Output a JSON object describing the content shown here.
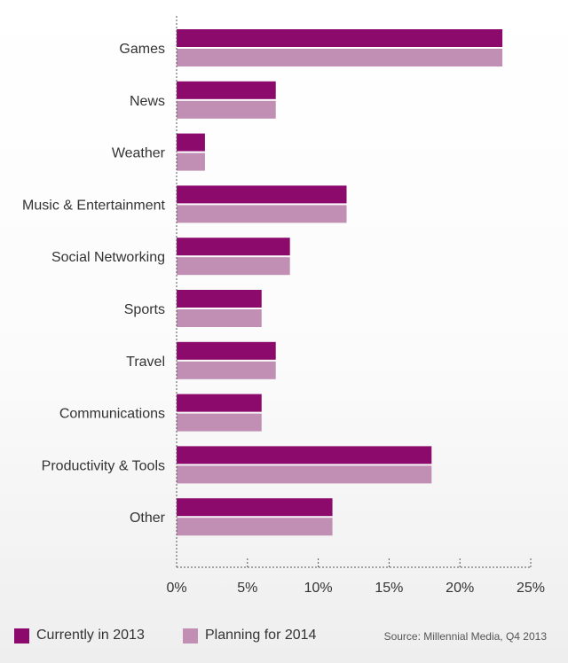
{
  "chart_data": {
    "type": "bar",
    "orientation": "horizontal",
    "categories": [
      "Games",
      "News",
      "Weather",
      "Music & Entertainment",
      "Social Networking",
      "Sports",
      "Travel",
      "Communications",
      "Productivity & Tools",
      "Other"
    ],
    "series": [
      {
        "name": "Currently in 2013",
        "color": "#8b0a6c",
        "values": [
          23,
          7,
          2,
          12,
          8,
          6,
          7,
          6,
          18,
          11
        ]
      },
      {
        "name": "Planning for 2014",
        "color": "#c18eb4",
        "values": [
          23,
          7,
          2,
          12,
          8,
          6,
          7,
          6,
          18,
          11
        ]
      }
    ],
    "xlim": [
      0,
      25
    ],
    "xticks": [
      0,
      5,
      10,
      15,
      20,
      25
    ],
    "tick_suffix": "%",
    "grid": false,
    "legend_position": "bottom-left",
    "title": "",
    "xlabel": "",
    "ylabel": ""
  },
  "source": "Source: Millennial Media, Q4 2013"
}
